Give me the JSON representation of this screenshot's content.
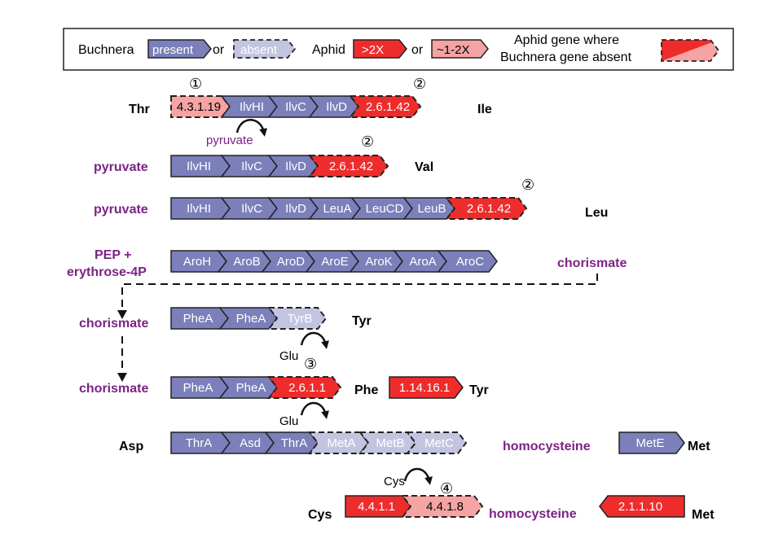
{
  "colors": {
    "present": "#7b7fba",
    "absent": "#c3c5e0",
    "high": "#ef2c2c",
    "mid": "#f5a3a3",
    "purple": "#7b2384",
    "outline": "#222222"
  },
  "legend": {
    "buchnera": "Buchnera",
    "present": "present",
    "or1": "or",
    "absent": "absent",
    "aphid": "Aphid",
    "high": ">2X",
    "or2": "or",
    "mid": "~1-2X",
    "note_line1": "Aphid gene where",
    "note_line2": "Buchnera gene absent"
  },
  "pathways": [
    {
      "id": "ile",
      "start": "Thr",
      "end": "Ile",
      "steps": [
        {
          "label": "4.3.1.19",
          "type": "mid-aphid"
        },
        {
          "label": "IlvHI",
          "type": "present"
        },
        {
          "label": "IlvC",
          "type": "present"
        },
        {
          "label": "IlvD",
          "type": "present"
        },
        {
          "label": "2.6.1.42",
          "type": "high-aphid"
        }
      ],
      "marks": [
        "①",
        "②"
      ],
      "side": "pyruvate"
    },
    {
      "id": "val",
      "start": "pyruvate",
      "end": "Val",
      "steps": [
        {
          "label": "IlvHI",
          "type": "present"
        },
        {
          "label": "IlvC",
          "type": "present"
        },
        {
          "label": "IlvD",
          "type": "present"
        },
        {
          "label": "2.6.1.42",
          "type": "high-aphid"
        }
      ],
      "marks": [
        "②"
      ]
    },
    {
      "id": "leu",
      "start": "pyruvate",
      "end": "Leu",
      "steps": [
        {
          "label": "IlvHI",
          "type": "present"
        },
        {
          "label": "IlvC",
          "type": "present"
        },
        {
          "label": "IlvD",
          "type": "present"
        },
        {
          "label": "LeuA",
          "type": "present"
        },
        {
          "label": "LeuCD",
          "type": "present"
        },
        {
          "label": "LeuB",
          "type": "present"
        },
        {
          "label": "2.6.1.42",
          "type": "high-aphid"
        }
      ],
      "marks": [
        "②"
      ]
    },
    {
      "id": "chorismate",
      "start_line1": "PEP +",
      "start_line2": "erythrose-4P",
      "end": "chorismate",
      "steps": [
        {
          "label": "AroH",
          "type": "present"
        },
        {
          "label": "AroB",
          "type": "present"
        },
        {
          "label": "AroD",
          "type": "present"
        },
        {
          "label": "AroE",
          "type": "present"
        },
        {
          "label": "AroK",
          "type": "present"
        },
        {
          "label": "AroA",
          "type": "present"
        },
        {
          "label": "AroC",
          "type": "present"
        }
      ]
    },
    {
      "id": "tyr",
      "start": "chorismate",
      "end": "Tyr",
      "steps": [
        {
          "label": "PheA",
          "type": "present"
        },
        {
          "label": "PheA",
          "type": "present"
        },
        {
          "label": "TyrB",
          "type": "absent"
        }
      ],
      "side": "Glu",
      "marks": [
        "③"
      ]
    },
    {
      "id": "phe",
      "start": "chorismate",
      "end": "Phe",
      "steps": [
        {
          "label": "PheA",
          "type": "present"
        },
        {
          "label": "PheA",
          "type": "present"
        },
        {
          "label": "2.6.1.1",
          "type": "high-aphid"
        }
      ],
      "extra_step": {
        "label": "1.14.16.1",
        "type": "high"
      },
      "extra_end": "Tyr",
      "side": "Glu"
    },
    {
      "id": "met",
      "start": "Asp",
      "mid_product": "homocysteine",
      "end": "Met",
      "steps": [
        {
          "label": "ThrA",
          "type": "present"
        },
        {
          "label": "Asd",
          "type": "present"
        },
        {
          "label": "ThrA",
          "type": "present"
        },
        {
          "label": "MetA",
          "type": "absent"
        },
        {
          "label": "MetB",
          "type": "absent"
        },
        {
          "label": "MetC",
          "type": "absent"
        }
      ],
      "extra_step": {
        "label": "MetE",
        "type": "present"
      },
      "side": "Cys"
    },
    {
      "id": "cys",
      "start": "Cys",
      "mid_product": "homocysteine",
      "end": "Met",
      "steps": [
        {
          "label": "4.4.1.1",
          "type": "high"
        },
        {
          "label": "4.4.1.8",
          "type": "mid-aphid"
        }
      ],
      "reverse_step": {
        "label": "2.1.1.10",
        "type": "high"
      },
      "marks": [
        "④"
      ]
    }
  ]
}
